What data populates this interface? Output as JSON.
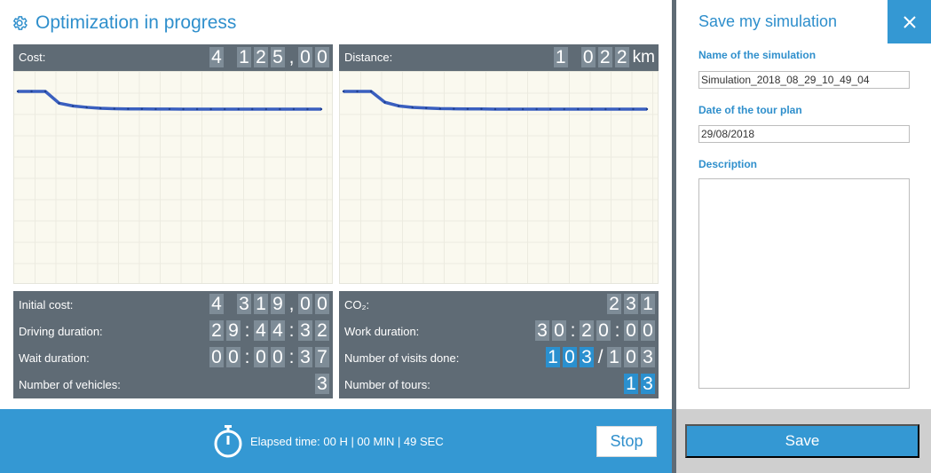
{
  "header": {
    "title": "Optimization in progress"
  },
  "cost_panel": {
    "label": "Cost:",
    "digits": [
      "4",
      " ",
      "1",
      "2",
      "5",
      ",",
      "0",
      "0"
    ]
  },
  "distance_panel": {
    "label": "Distance:",
    "digits": [
      "1",
      " ",
      "0",
      "2",
      "2"
    ],
    "unit": "km"
  },
  "stats_left": {
    "rows": [
      {
        "label": "Initial cost:",
        "digits": [
          "4",
          " ",
          "3",
          "1",
          "9",
          ",",
          "0",
          "0"
        ]
      },
      {
        "label": "Driving duration:",
        "digits": [
          "2",
          "9",
          ":",
          "4",
          "4",
          ":",
          "3",
          "2"
        ]
      },
      {
        "label": "Wait duration:",
        "digits": [
          "0",
          "0",
          ":",
          "0",
          "0",
          ":",
          "3",
          "7"
        ]
      },
      {
        "label": "Number of vehicles:",
        "digits": [
          "3"
        ]
      }
    ]
  },
  "stats_right": {
    "rows": [
      {
        "label": "CO₂:",
        "digits": [
          "2",
          "3",
          "1"
        ]
      },
      {
        "label": "Work duration:",
        "digits": [
          "3",
          "0",
          ":",
          "2",
          "0",
          ":",
          "0",
          "0"
        ]
      },
      {
        "label": "Number of visits done:",
        "digits": [
          "1",
          "0",
          "3",
          "/",
          "1",
          "0",
          "3"
        ],
        "highlight": [
          0,
          1,
          2
        ]
      },
      {
        "label": "Number of tours:",
        "digits": [
          "1",
          "3"
        ],
        "highlight": [
          0,
          1
        ]
      }
    ]
  },
  "footer": {
    "elapsed": "Elapsed time: 00 H | 00 MIN | 49 SEC",
    "stop_label": "Stop"
  },
  "save_panel": {
    "title": "Save my simulation",
    "name_label": "Name of the simulation",
    "name_value": "Simulation_2018_08_29_10_49_04",
    "date_label": "Date of the tour plan",
    "date_value": "29/08/2018",
    "description_label": "Description",
    "description_value": "",
    "save_label": "Save"
  },
  "colors": {
    "accent": "#3498d3",
    "panel": "#5f6b75",
    "digit_bg": "#7e8c97",
    "highlight_digit": "#2a90cf",
    "series": "#3a5fbf"
  },
  "icons": [
    "gear-icon",
    "stopwatch-icon",
    "close-icon"
  ],
  "chart_data": [
    {
      "type": "line",
      "series": [
        {
          "values": [
            4319,
            4319,
            4319,
            4190,
            4160,
            4145,
            4135,
            4130,
            4128,
            4127,
            4126,
            4126,
            4125,
            4125,
            4125,
            4125,
            4125,
            4125,
            4125,
            4125,
            4125,
            4125,
            4125
          ]
        }
      ],
      "grid": true
    },
    {
      "type": "line",
      "series": [
        {
          "values": [
            1120,
            1120,
            1120,
            1060,
            1040,
            1032,
            1028,
            1025,
            1024,
            1023,
            1023,
            1022,
            1022,
            1022,
            1022,
            1022,
            1022,
            1022,
            1022,
            1022,
            1022,
            1022,
            1022
          ]
        }
      ],
      "grid": true
    }
  ]
}
